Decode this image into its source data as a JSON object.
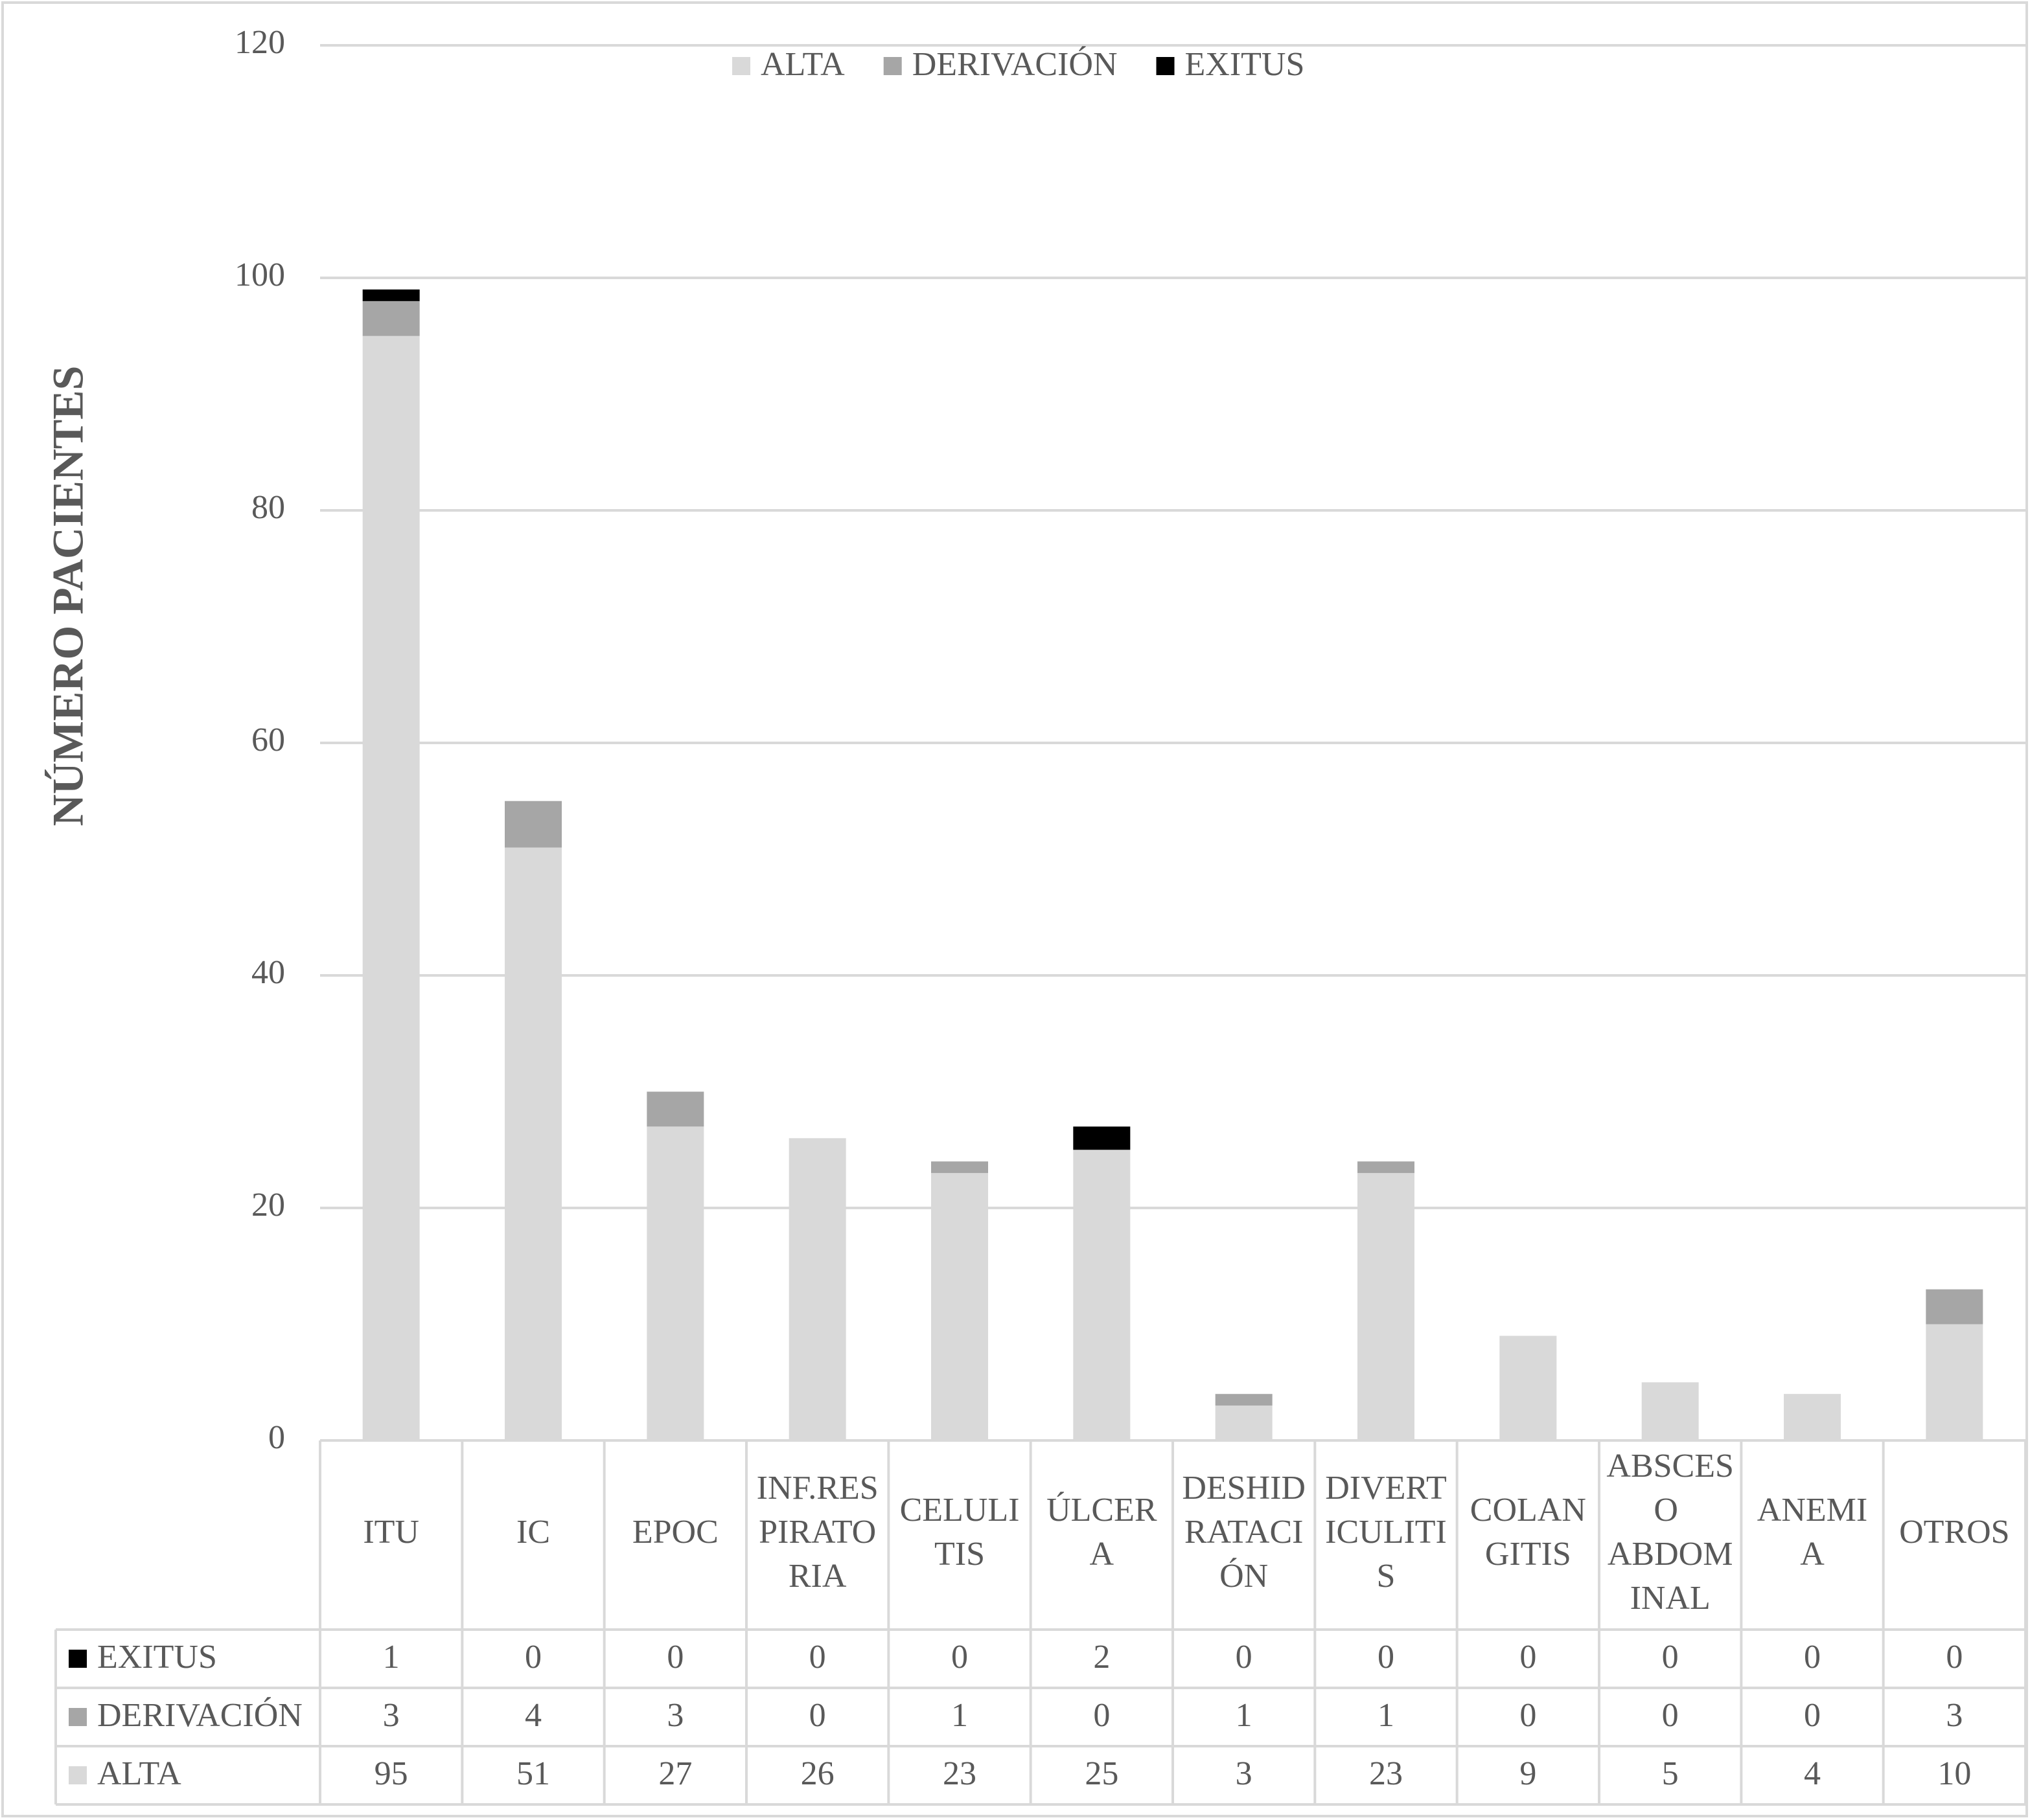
{
  "chart_data": {
    "type": "bar",
    "stacked": true,
    "y_label": "NÚMERO PACIENTES",
    "categories": [
      "ITU",
      "IC",
      "EPOC",
      "INF.RESPIRATORIA",
      "CELULITIS",
      "ÚLCERA",
      "DESHIDRATACIÓN",
      "DIVERTICULITIS",
      "COLANGITIS",
      "ABSCESO ABDOMINAL",
      "ANEMIA",
      "OTROS"
    ],
    "series": [
      {
        "name": "ALTA",
        "color": "#d9d9d9",
        "values": [
          95,
          51,
          27,
          26,
          23,
          25,
          3,
          23,
          9,
          5,
          4,
          10
        ]
      },
      {
        "name": "DERIVACIÓN",
        "color": "#a6a6a6",
        "values": [
          3,
          4,
          3,
          0,
          1,
          0,
          1,
          1,
          0,
          0,
          0,
          3
        ]
      },
      {
        "name": "EXITUS",
        "color": "#000000",
        "values": [
          1,
          0,
          0,
          0,
          0,
          2,
          0,
          0,
          0,
          0,
          0,
          0
        ]
      }
    ],
    "ylim": [
      0,
      120
    ],
    "yticks": [
      0,
      20,
      40,
      60,
      80,
      100,
      120
    ],
    "grid": true,
    "legend": "top",
    "data_table": true
  }
}
